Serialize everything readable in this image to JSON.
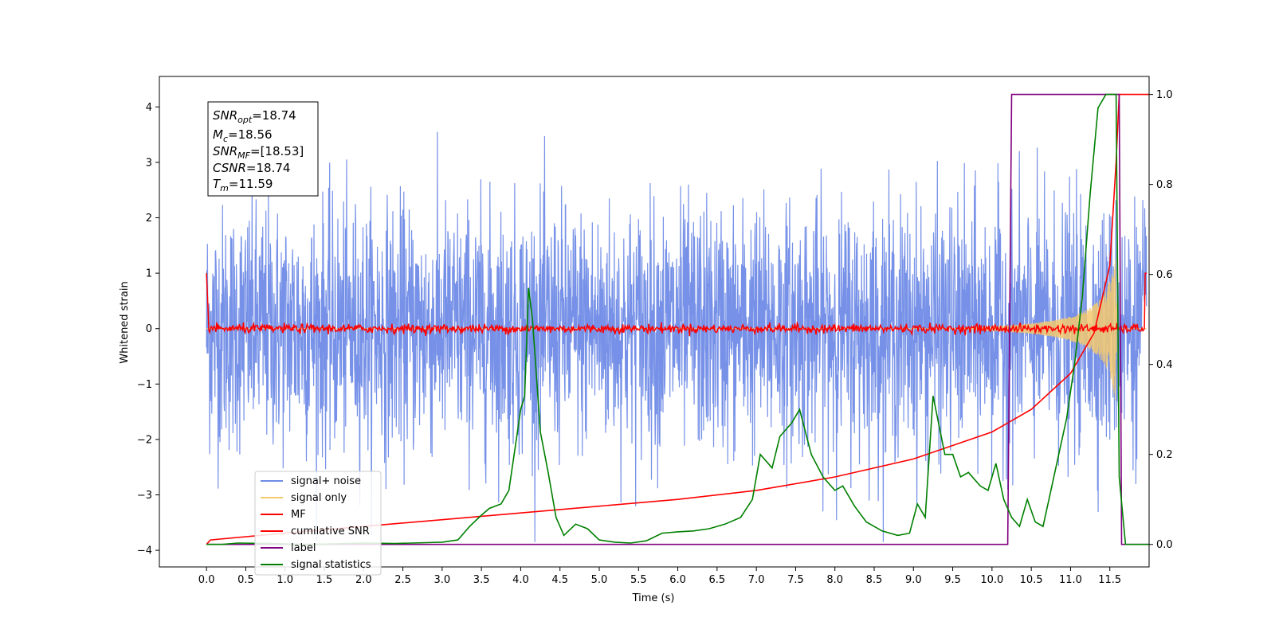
{
  "chart_data": {
    "type": "line",
    "xlabel": "Time (s)",
    "ylabel": "Whitened strain",
    "xlim": [
      -0.6,
      12.0
    ],
    "ylim": [
      -4.3,
      4.55
    ],
    "y2lim": [
      -0.05,
      1.04
    ],
    "x_ticks": [
      "0.0",
      "0.5",
      "1.0",
      "1.5",
      "2.0",
      "2.5",
      "3.0",
      "3.5",
      "4.0",
      "4.5",
      "5.0",
      "5.5",
      "6.0",
      "6.5",
      "7.0",
      "7.5",
      "8.0",
      "8.5",
      "9.0",
      "9.5",
      "10.0",
      "10.5",
      "11.0",
      "11.5"
    ],
    "y_ticks": [
      "4",
      "3",
      "2",
      "1",
      "0",
      "−1",
      "−2",
      "−3",
      "−4"
    ],
    "y2_ticks": [
      "1.0",
      "0.8",
      "0.6",
      "0.4",
      "0.2",
      "0.0"
    ],
    "annotation": {
      "snr_opt": {
        "name": "SNR",
        "sub": "opt",
        "value": "=18.74"
      },
      "mc": {
        "name": "M",
        "sub": "c",
        "value": "=18.56"
      },
      "snr_mf": {
        "name": "SNR",
        "sub": "MF",
        "value": "=[18.53]"
      },
      "csnr": {
        "name": "CSNR",
        "value": "=18.74"
      },
      "tm": {
        "name": "T",
        "sub": "m",
        "value": "=11.59"
      }
    },
    "legend_position": "lower-left",
    "series": [
      {
        "name": "signal+ noise",
        "color": "#6f8be6",
        "axis": "left",
        "kind": "noise",
        "t_range": [
          0,
          12
        ],
        "amplitude_std": 1.1
      },
      {
        "name": "signal only",
        "color": "#f5c96e",
        "axis": "left",
        "kind": "chirp",
        "t_merger": 11.59
      },
      {
        "name": "MF",
        "color": "#ff0000",
        "axis": "left",
        "kind": "noise_small",
        "t_range": [
          0,
          12
        ],
        "amplitude_std": 0.04
      },
      {
        "name": "cumilative SNR",
        "color": "#ff0000",
        "axis": "right",
        "x": [
          0.0,
          0.05,
          1.0,
          2.0,
          3.0,
          4.0,
          5.0,
          6.0,
          7.0,
          8.0,
          9.0,
          10.0,
          10.5,
          11.0,
          11.3,
          11.5,
          11.58,
          11.62,
          12.0
        ],
        "y": [
          0.0,
          0.01,
          0.025,
          0.04,
          0.055,
          0.07,
          0.085,
          0.1,
          0.12,
          0.15,
          0.19,
          0.25,
          0.3,
          0.38,
          0.47,
          0.62,
          0.85,
          1.0,
          1.0
        ]
      },
      {
        "name": "label",
        "color": "#800080",
        "axis": "right",
        "x": [
          0.0,
          10.2,
          10.25,
          11.62,
          11.65,
          12.0
        ],
        "y": [
          0.0,
          0.0,
          1.0,
          1.0,
          0.0,
          0.0
        ]
      },
      {
        "name": "signal statistics",
        "color": "#008000",
        "axis": "right",
        "x": [
          0.0,
          0.2,
          0.4,
          0.8,
          1.2,
          1.6,
          2.0,
          2.4,
          2.8,
          3.0,
          3.2,
          3.35,
          3.5,
          3.6,
          3.75,
          3.85,
          3.95,
          4.0,
          4.05,
          4.1,
          4.15,
          4.25,
          4.35,
          4.45,
          4.55,
          4.7,
          4.85,
          5.0,
          5.2,
          5.4,
          5.6,
          5.8,
          6.0,
          6.2,
          6.4,
          6.6,
          6.8,
          6.95,
          7.05,
          7.2,
          7.3,
          7.45,
          7.55,
          7.7,
          7.85,
          8.0,
          8.1,
          8.25,
          8.4,
          8.6,
          8.8,
          8.95,
          9.05,
          9.15,
          9.25,
          9.4,
          9.5,
          9.6,
          9.7,
          9.85,
          9.95,
          10.05,
          10.15,
          10.25,
          10.35,
          10.45,
          10.55,
          10.65,
          10.75,
          10.85,
          10.95,
          11.05,
          11.15,
          11.25,
          11.35,
          11.45,
          11.52,
          11.58,
          11.62,
          11.7,
          11.8,
          12.0
        ],
        "y": [
          0.0,
          0.0,
          0.003,
          0.002,
          0.0,
          0.001,
          0.003,
          0.002,
          0.004,
          0.005,
          0.01,
          0.04,
          0.065,
          0.08,
          0.09,
          0.12,
          0.24,
          0.3,
          0.33,
          0.57,
          0.5,
          0.25,
          0.16,
          0.06,
          0.02,
          0.045,
          0.035,
          0.01,
          0.005,
          0.003,
          0.008,
          0.025,
          0.028,
          0.03,
          0.035,
          0.045,
          0.06,
          0.1,
          0.2,
          0.17,
          0.24,
          0.27,
          0.3,
          0.2,
          0.15,
          0.12,
          0.13,
          0.085,
          0.05,
          0.03,
          0.02,
          0.025,
          0.09,
          0.06,
          0.33,
          0.2,
          0.2,
          0.15,
          0.16,
          0.13,
          0.12,
          0.18,
          0.1,
          0.06,
          0.04,
          0.1,
          0.05,
          0.04,
          0.12,
          0.2,
          0.28,
          0.4,
          0.55,
          0.78,
          0.97,
          1.0,
          1.0,
          1.0,
          0.15,
          0.0,
          0.0,
          0.0
        ]
      }
    ]
  }
}
